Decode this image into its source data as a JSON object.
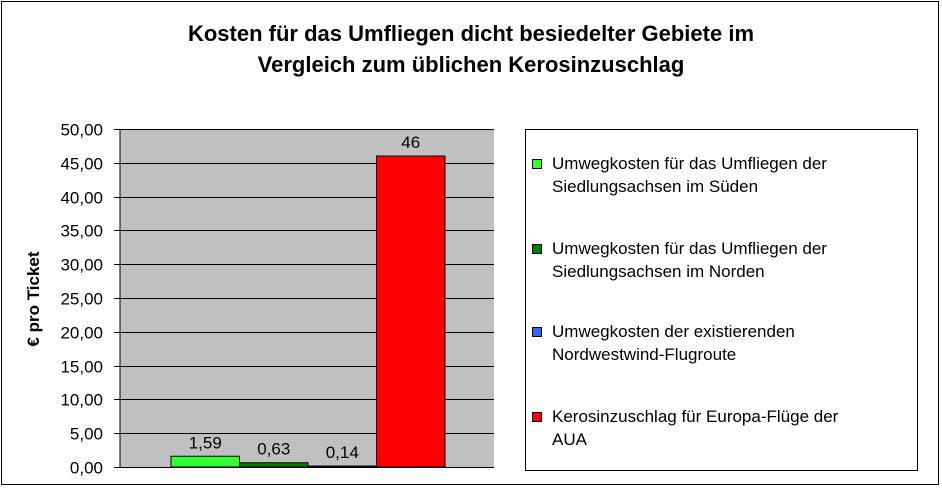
{
  "chart_data": {
    "type": "bar",
    "title": "Kosten für das Umfliegen dicht besiedelter Gebiete im Vergleich zum üblichen Kerosinzuschlag",
    "title_lines": [
      "Kosten für das Umfliegen dicht besiedelter Gebiete im",
      "Vergleich zum üblichen Kerosinzuschlag"
    ],
    "xlabel": "",
    "ylabel": "€ pro Ticket",
    "ylim": [
      0,
      50
    ],
    "yticks": [
      "0,00",
      "5,00",
      "10,00",
      "15,00",
      "20,00",
      "25,00",
      "30,00",
      "35,00",
      "40,00",
      "45,00",
      "50,00"
    ],
    "grid": true,
    "plot_background": "#c0c0c0",
    "legend_position": "right",
    "series": [
      {
        "name": "Umwegkosten für das Umfliegen der Siedlungsachsen im Süden",
        "name_lines": [
          "Umwegkosten für das Umfliegen der",
          "Siedlungsachsen im Süden"
        ],
        "value": 1.59,
        "label": "1,59",
        "color": "#33ff33"
      },
      {
        "name": "Umwegkosten für das Umfliegen der Siedlungsachsen im Norden",
        "name_lines": [
          "Umwegkosten für das Umfliegen der",
          "Siedlungsachsen im Norden"
        ],
        "value": 0.63,
        "label": "0,63",
        "color": "#008000"
      },
      {
        "name": "Umwegkosten der existierenden Nordwestwind-Flugroute",
        "name_lines": [
          "Umwegkosten der existierenden",
          "Nordwestwind-Flugroute"
        ],
        "value": 0.14,
        "label": "0,14",
        "color": "#3366ff"
      },
      {
        "name": "Kerosinzuschlag für Europa-Flüge der AUA",
        "name_lines": [
          "Kerosinzuschlag für Europa-Flüge der",
          "AUA"
        ],
        "value": 46,
        "label": "46",
        "color": "#ff0000"
      }
    ]
  }
}
